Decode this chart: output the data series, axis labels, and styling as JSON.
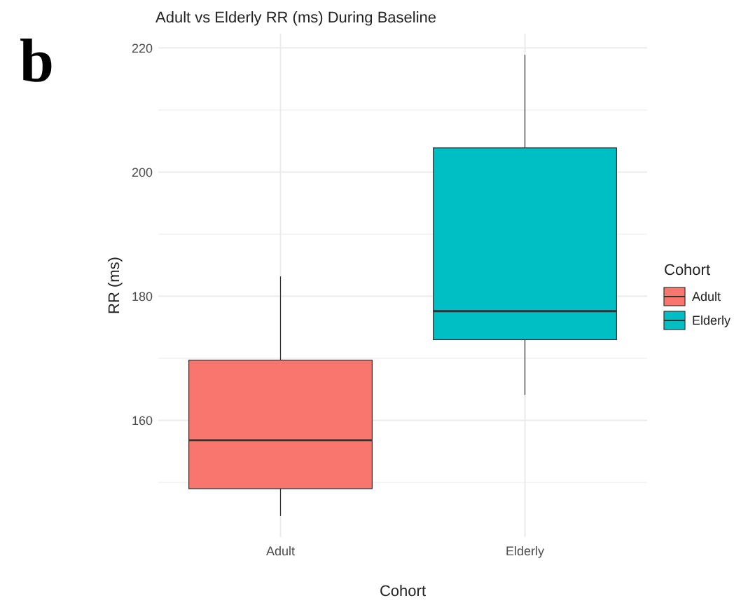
{
  "chart_data": {
    "type": "box",
    "title": "Adult vs Elderly RR (ms) During Baseline",
    "xlabel": "Cohort",
    "ylabel": "RR (ms)",
    "legend_title": "Cohort",
    "categories": [
      "Adult",
      "Elderly"
    ],
    "series": [
      {
        "name": "Adult",
        "color": "#f8766d",
        "boxes": [
          {
            "low": 144.6,
            "q1": 149,
            "median": 156.8,
            "q3": 169.7,
            "high": 183.2
          },
          null
        ]
      },
      {
        "name": "Elderly",
        "color": "#00bfc4",
        "boxes": [
          null,
          {
            "low": 164.1,
            "q1": 173,
            "median": 177.6,
            "q3": 203.9,
            "high": 218.9
          }
        ]
      }
    ],
    "ylim": [
      141.2,
      222.3
    ],
    "yticks": [
      {
        "value": 150,
        "label": null
      },
      160,
      {
        "value": 170,
        "label": null
      },
      180,
      {
        "value": 190,
        "label": null
      },
      200,
      {
        "value": 210,
        "label": null
      },
      220
    ],
    "grid": true,
    "legend": "right",
    "annotations": [
      "b"
    ]
  }
}
